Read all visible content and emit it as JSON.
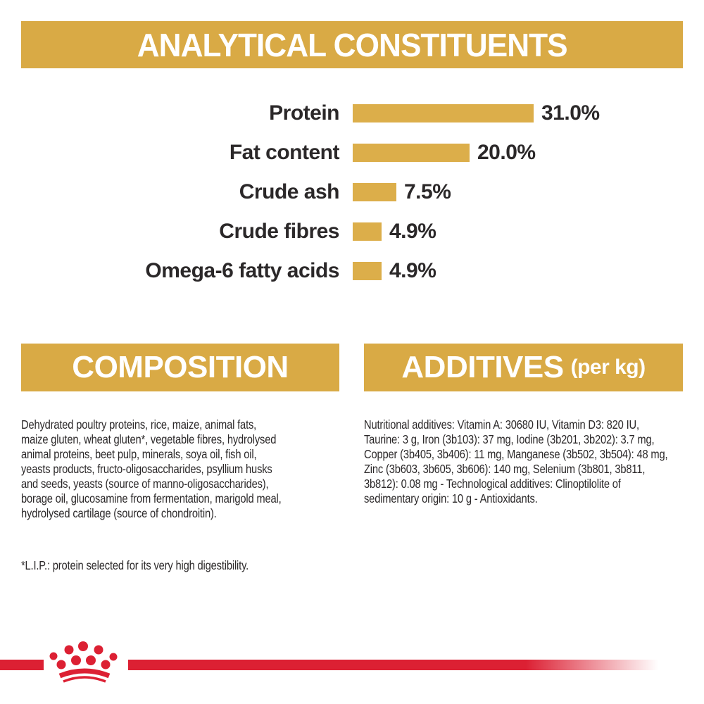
{
  "header": {
    "title": "ANALYTICAL CONSTITUENTS"
  },
  "chart_data": {
    "type": "bar",
    "orientation": "horizontal",
    "title": "ANALYTICAL CONSTITUENTS",
    "categories": [
      "Protein",
      "Fat content",
      "Crude ash",
      "Crude fibres",
      "Omega-6 fatty acids"
    ],
    "values": [
      31.0,
      20.0,
      7.5,
      4.9,
      4.9
    ],
    "value_labels": [
      "31.0%",
      "20.0%",
      "7.5%",
      "4.9%",
      "4.9%"
    ],
    "unit": "%",
    "xlim": [
      0,
      33
    ],
    "bar_color": "#DCAE4A",
    "grid": false,
    "legend": "none"
  },
  "sections": {
    "composition": {
      "title": "COMPOSITION",
      "body": "Dehydrated poultry proteins, rice, maize, animal fats,\nmaize gluten, wheat gluten*, vegetable fibres, hydrolysed\nanimal proteins, beet pulp, minerals, soya oil, fish oil,\nyeasts products, fructo-oligosaccharides, psyllium husks\nand seeds, yeasts (source of manno-oligosaccharides),\nborage oil, glucosamine from fermentation, marigold meal,\nhydrolysed cartilage (source of chondroitin).",
      "note": "*L.I.P.: protein selected for its very high digestibility."
    },
    "additives": {
      "title": "ADDITIVES",
      "title_suffix": "(per kg)",
      "body": "Nutritional additives: Vitamin A: 30680 IU, Vitamin D3: 820 IU,\nTaurine: 3 g, Iron (3b103): 37 mg, Iodine (3b201, 3b202): 3.7 mg,\nCopper (3b405, 3b406): 11 mg, Manganese (3b502, 3b504): 48 mg,\nZinc (3b603, 3b605, 3b606): 140 mg, Selenium (3b801, 3b811,\n3b812): 0.08 mg - Technological additives: Clinoptilolite of\nsedimentary origin: 10 g - Antioxidants."
    }
  },
  "footer": {
    "logo": "royal-canin-crown"
  },
  "colors": {
    "gold": "#D9AA45",
    "bar_gold": "#DCAE4A",
    "red": "#DC2033",
    "text": "#2B2829",
    "header_text": "#FFFFFF"
  }
}
